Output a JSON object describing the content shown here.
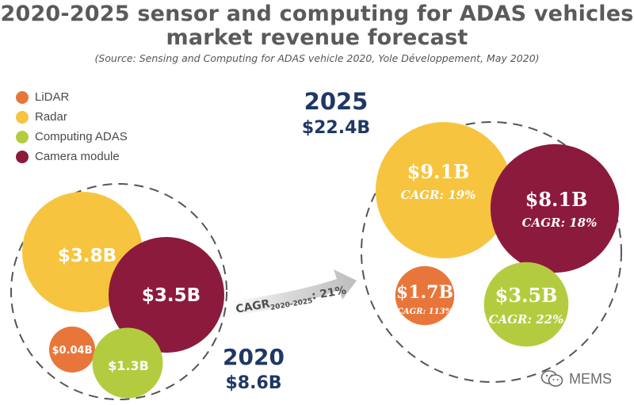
{
  "header": {
    "title_line1": "2020-2025 sensor and computing for ADAS vehicles",
    "title_line2": "market revenue forecast",
    "source": "(Source: Sensing and Computing for ADAS vehicle 2020, Yole Développement, May 2020)"
  },
  "watermark": {
    "text": "MEMS",
    "icon": "wechat-icon"
  },
  "chart_data": {
    "type": "bubble",
    "categories": [
      "LiDAR",
      "Radar",
      "Computing ADAS",
      "Camera module"
    ],
    "colors": {
      "LiDAR": "#e8763a",
      "Radar": "#f6c43f",
      "Computing ADAS": "#b3cc3f",
      "Camera module": "#8c1a3c"
    },
    "legend": [
      {
        "label": "LiDAR",
        "color": "#e8763a"
      },
      {
        "label": "Radar",
        "color": "#f6c43f"
      },
      {
        "label": "Computing ADAS",
        "color": "#b3cc3f"
      },
      {
        "label": "Camera module",
        "color": "#8c1a3c"
      }
    ],
    "legend_position": "top-left",
    "groups": [
      {
        "year": "2020",
        "total_label": "$8.6B",
        "total_value": 8.6,
        "bubbles": [
          {
            "category": "Radar",
            "label": "$3.8B",
            "value": 3.8,
            "cagr": ""
          },
          {
            "category": "Camera module",
            "label": "$3.5B",
            "value": 3.5,
            "cagr": ""
          },
          {
            "category": "LiDAR",
            "label": "$0.04B",
            "value": 0.04,
            "cagr": ""
          },
          {
            "category": "Computing ADAS",
            "label": "$1.3B",
            "value": 1.3,
            "cagr": ""
          }
        ]
      },
      {
        "year": "2025",
        "total_label": "$22.4B",
        "total_value": 22.4,
        "bubbles": [
          {
            "category": "Radar",
            "label": "$9.1B",
            "value": 9.1,
            "cagr": "CAGR: 19%"
          },
          {
            "category": "Camera module",
            "label": "$8.1B",
            "value": 8.1,
            "cagr": "CAGR: 18%"
          },
          {
            "category": "LiDAR",
            "label": "$1.7B",
            "value": 1.7,
            "cagr": "CAGR: 113%"
          },
          {
            "category": "Computing ADAS",
            "label": "$3.5B",
            "value": 3.5,
            "cagr": "CAGR: 22%"
          }
        ]
      }
    ],
    "arrow": {
      "label_main": "CAGR",
      "label_sub": "2020-2025",
      "label_value": ": 21%",
      "value": 21
    }
  }
}
